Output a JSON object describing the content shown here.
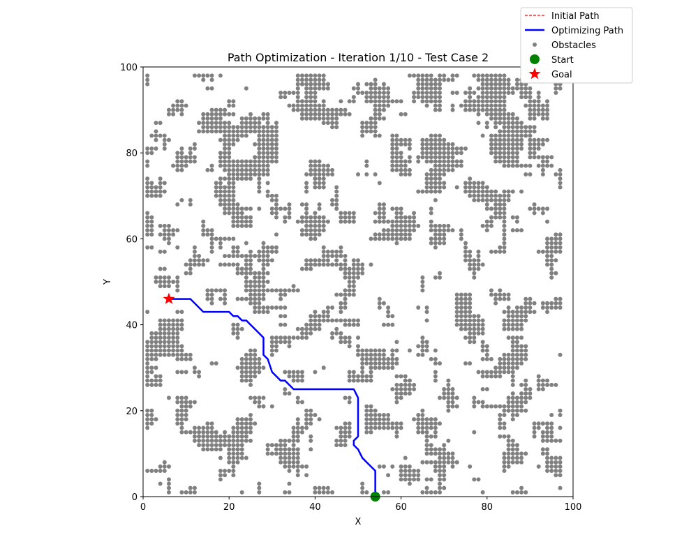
{
  "chart_data": {
    "type": "scatter",
    "title": "Path Optimization - Iteration 1/10 - Test Case 2",
    "xlabel": "X",
    "ylabel": "Y",
    "xlim": [
      0,
      100
    ],
    "ylim": [
      0,
      100
    ],
    "xticks": [
      "0",
      "20",
      "40",
      "60",
      "80",
      "100"
    ],
    "yticks": [
      "0",
      "20",
      "40",
      "60",
      "80",
      "100"
    ],
    "grid": false,
    "legend_position": "top-right",
    "legend": [
      "Initial Path",
      "Optimizing Path",
      "Obstacles",
      "Start",
      "Goal"
    ],
    "colors": {
      "initial_path": "#ff0000",
      "optimizing_path": "#0000ff",
      "obstacles": "#808080",
      "start": "#008000",
      "goal": "#ff0000"
    },
    "series": [
      {
        "name": "Initial Path",
        "style": "dashed",
        "x": [],
        "y": []
      },
      {
        "name": "Optimizing Path",
        "style": "solid",
        "x": [
          54,
          54,
          53,
          52,
          51,
          50,
          49,
          49,
          50,
          50,
          50,
          49,
          48,
          35,
          33,
          32,
          30,
          29,
          28,
          28,
          27,
          25,
          24,
          23,
          22,
          21,
          20,
          14,
          11,
          6
        ],
        "y": [
          0,
          6,
          7,
          8,
          9,
          11,
          12,
          13,
          14,
          20,
          23,
          25,
          25,
          25,
          27,
          27,
          29,
          32,
          33,
          37,
          38,
          40,
          41,
          41,
          42,
          42,
          43,
          43,
          46,
          46
        ]
      },
      {
        "name": "Obstacles",
        "style": "markers",
        "generated": true
      }
    ],
    "start": [
      54,
      0
    ],
    "goal": [
      6,
      46
    ]
  }
}
